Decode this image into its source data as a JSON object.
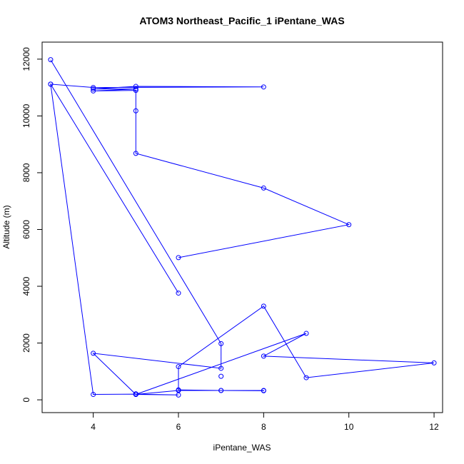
{
  "chart_data": {
    "type": "line",
    "title": "ATOM3 Northeast_Pacific_1 iPentane_WAS",
    "xlabel": "iPentane_WAS",
    "ylabel": "Altitude (m)",
    "xlim": [
      2.8,
      12.2
    ],
    "ylim": [
      -450,
      12600
    ],
    "x_ticks": [
      4,
      6,
      8,
      10,
      12
    ],
    "y_ticks": [
      0,
      2000,
      4000,
      6000,
      8000,
      10000,
      12000
    ],
    "grid": false,
    "color": "#0000ff",
    "points": [
      {
        "x": 3,
        "y": 11980
      },
      {
        "x": 7,
        "y": 1980
      },
      {
        "x": 7,
        "y": 1110
      },
      {
        "x": 4,
        "y": 1640
      },
      {
        "x": 5,
        "y": 190
      },
      {
        "x": 9,
        "y": 2340
      },
      {
        "x": 8,
        "y": 1540
      },
      {
        "x": 12,
        "y": 1300
      },
      {
        "x": 9,
        "y": 780
      },
      {
        "x": 8,
        "y": 3300
      },
      {
        "x": 6,
        "y": 1170
      },
      {
        "x": 6,
        "y": 350
      },
      {
        "x": 7,
        "y": 330
      },
      {
        "x": 8,
        "y": 320
      },
      {
        "x": 8,
        "y": 330
      },
      {
        "x": 7,
        "y": 330
      },
      {
        "x": 6,
        "y": 330
      },
      {
        "x": 5,
        "y": 190
      },
      {
        "x": 6,
        "y": 170
      },
      {
        "x": 5,
        "y": 200
      },
      {
        "x": 4,
        "y": 190
      },
      {
        "x": 3,
        "y": 11120
      },
      {
        "x": 6,
        "y": 3760
      },
      {
        "x": 3,
        "y": 11120
      },
      {
        "x": 4,
        "y": 11000
      },
      {
        "x": 8,
        "y": 11020
      },
      {
        "x": 5,
        "y": 11040
      },
      {
        "x": 4,
        "y": 10950
      },
      {
        "x": 5,
        "y": 10950
      },
      {
        "x": 4,
        "y": 10880
      },
      {
        "x": 5,
        "y": 10900
      },
      {
        "x": 5,
        "y": 10180
      },
      {
        "x": 5,
        "y": 8680
      },
      {
        "x": 8,
        "y": 7460
      },
      {
        "x": 10,
        "y": 6170
      },
      {
        "x": 6,
        "y": 5010
      }
    ],
    "extra_points": [
      {
        "x": 7,
        "y": 830
      },
      {
        "x": 5,
        "y": 210
      }
    ]
  }
}
